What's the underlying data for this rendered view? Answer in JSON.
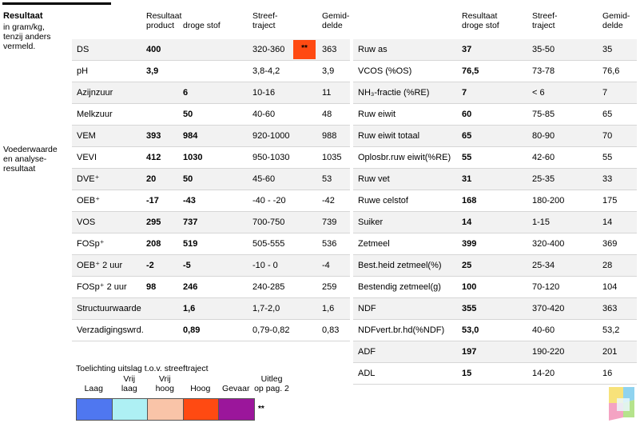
{
  "sidebar": {
    "title": "Resultaat",
    "subtitle_lines": [
      "in gram/kg,",
      "tenzij anders",
      "vermeld."
    ],
    "section2_lines": [
      "Voederwaarde",
      "en analyse-",
      "resultaat"
    ]
  },
  "left_headers": {
    "resultaat_top": "Resultaat",
    "product": "product",
    "droge_stof": "droge stof",
    "streef_1": "Streef-",
    "streef_2": "traject",
    "gemid_1": "Gemid-",
    "gemid_2": "delde"
  },
  "right_headers": {
    "resultaat_1": "Resultaat",
    "resultaat_2": "droge stof",
    "streef_1": "Streef-",
    "streef_2": "traject",
    "gemid_1": "Gemid-",
    "gemid_2": "delde"
  },
  "left_rows": [
    {
      "name": "DS",
      "product": "400",
      "droge_stof": "",
      "streef": "320-360",
      "flag": "**",
      "gem": "363"
    },
    {
      "name": "pH",
      "product": "3,9",
      "droge_stof": "",
      "streef": "3,8-4,2",
      "flag": "",
      "gem": "3,9"
    },
    {
      "name": "Azijnzuur",
      "product": "",
      "droge_stof": "6",
      "streef": "10-16",
      "flag": "",
      "gem": "11"
    },
    {
      "name": "Melkzuur",
      "product": "",
      "droge_stof": "50",
      "streef": "40-60",
      "flag": "",
      "gem": "48"
    },
    {
      "name": "VEM",
      "product": "393",
      "droge_stof": "984",
      "streef": "920-1000",
      "flag": "",
      "gem": "988"
    },
    {
      "name": "VEVI",
      "product": "412",
      "droge_stof": "1030",
      "streef": "950-1030",
      "flag": "",
      "gem": "1035"
    },
    {
      "name": "DVE⁺",
      "product": "20",
      "droge_stof": "50",
      "streef": "45-60",
      "flag": "",
      "gem": "53"
    },
    {
      "name": "OEB⁺",
      "product": "-17",
      "droge_stof": "-43",
      "streef": "-40 - -20",
      "flag": "",
      "gem": "-42"
    },
    {
      "name": "VOS",
      "product": "295",
      "droge_stof": "737",
      "streef": "700-750",
      "flag": "",
      "gem": "739"
    },
    {
      "name": "FOSp⁺",
      "product": "208",
      "droge_stof": "519",
      "streef": "505-555",
      "flag": "",
      "gem": "536"
    },
    {
      "name": "OEB⁺ 2 uur",
      "product": "-2",
      "droge_stof": "-5",
      "streef": "-10 - 0",
      "flag": "",
      "gem": "-4"
    },
    {
      "name": "FOSp⁺ 2 uur",
      "product": "98",
      "droge_stof": "246",
      "streef": "240-285",
      "flag": "",
      "gem": "259"
    },
    {
      "name": "Structuurwaarde",
      "product": "",
      "droge_stof": "1,6",
      "streef": "1,7-2,0",
      "flag": "",
      "gem": "1,6"
    },
    {
      "name": "Verzadigingswrd.",
      "product": "",
      "droge_stof": "0,89",
      "streef": "0,79-0,82",
      "flag": "",
      "gem": "0,83"
    }
  ],
  "right_rows": [
    {
      "name": "Ruw as",
      "value": "37",
      "streef": "35-50",
      "gem": "35"
    },
    {
      "name": "VCOS (%OS)",
      "value": "76,5",
      "streef": "73-78",
      "gem": "76,6"
    },
    {
      "name": "NH₃-fractie (%RE)",
      "value": "7",
      "streef": "< 6",
      "gem": "7"
    },
    {
      "name": "Ruw eiwit",
      "value": "60",
      "streef": "75-85",
      "gem": "65"
    },
    {
      "name": "Ruw eiwit totaal",
      "value": "65",
      "streef": "80-90",
      "gem": "70"
    },
    {
      "name": "Oplosbr.ruw eiwit(%RE)",
      "value": "55",
      "streef": "42-60",
      "gem": "55"
    },
    {
      "name": "Ruw vet",
      "value": "31",
      "streef": "25-35",
      "gem": "33"
    },
    {
      "name": "Ruwe celstof",
      "value": "168",
      "streef": "180-200",
      "gem": "175"
    },
    {
      "name": "Suiker",
      "value": "14",
      "streef": "1-15",
      "gem": "14"
    },
    {
      "name": "Zetmeel",
      "value": "399",
      "streef": "320-400",
      "gem": "369"
    },
    {
      "name": "Best.heid zetmeel(%)",
      "value": "25",
      "streef": "25-34",
      "gem": "28"
    },
    {
      "name": "Bestendig zetmeel(g)",
      "value": "100",
      "streef": "70-120",
      "gem": "104"
    },
    {
      "name": "NDF",
      "value": "355",
      "streef": "370-420",
      "gem": "363"
    },
    {
      "name": "NDFvert.br.hd(%NDF)",
      "value": "53,0",
      "streef": "40-60",
      "gem": "53,2"
    },
    {
      "name": "ADF",
      "value": "197",
      "streef": "190-220",
      "gem": "201"
    },
    {
      "name": "ADL",
      "value": "15",
      "streef": "14-20",
      "gem": "16"
    }
  ],
  "legend": {
    "title": "Toelichting uitslag t.o.v. streeftraject",
    "items": [
      {
        "line1": "",
        "line2": "Laag",
        "color": "#4f77f0"
      },
      {
        "line1": "Vrij",
        "line2": "laag",
        "color": "#aef0f4"
      },
      {
        "line1": "Vrij",
        "line2": "hoog",
        "color": "#f9c4a8"
      },
      {
        "line1": "",
        "line2": "Hoog",
        "color": "#ff4a12"
      },
      {
        "line1": "",
        "line2": "Gevaar",
        "color": "#9b169b"
      }
    ],
    "uitleg_1": "Uitleg",
    "uitleg_2": "op pag. 2",
    "marker": "**"
  },
  "colors": {
    "row_shade": "#f2f2f2",
    "flag": "#ff4a12"
  }
}
